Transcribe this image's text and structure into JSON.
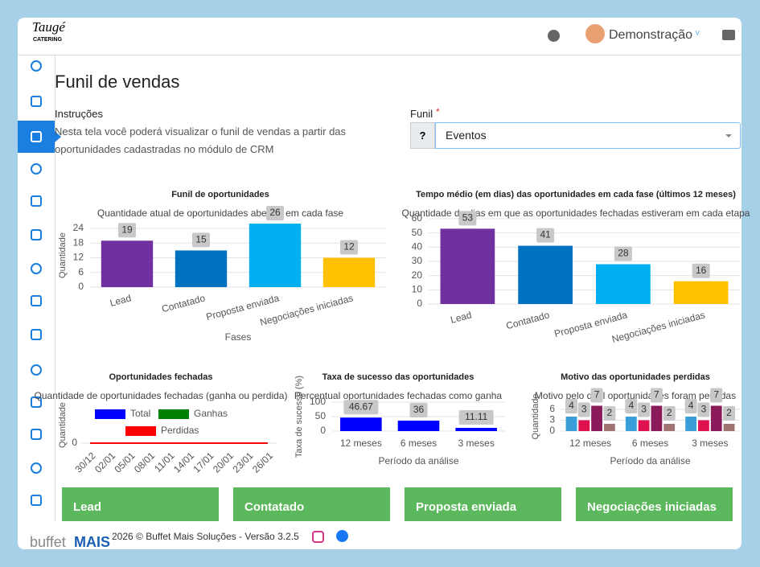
{
  "header": {
    "logo": "Taugé",
    "logo_sub": "CATERING",
    "user": "Demonstração"
  },
  "page": {
    "title": "Funil de vendas",
    "instructions_title": "Instruções",
    "instructions": "Nesta tela você poderá visualizar o funil de vendas a partir das oportunidades cadastradas no módulo de CRM",
    "funnel_label": "Funil",
    "required": "*",
    "help": "?",
    "funnel_value": "Eventos"
  },
  "chart_data": [
    {
      "type": "bar",
      "title": "Funil de oportunidades",
      "subtitle": "Quantidade atual de oportunidades abertas em cada fase",
      "x_label": "Fases",
      "y_label": "Quantidade",
      "categories": [
        "Lead",
        "Contatado",
        "Proposta enviada",
        "Negociações iniciadas"
      ],
      "values": [
        19,
        15,
        26,
        12
      ],
      "colors": [
        "#7030a0",
        "#0070c0",
        "#00b0f0",
        "#ffc000"
      ],
      "ylim": [
        0,
        26
      ],
      "yticks": [
        0,
        6,
        12,
        18,
        24
      ],
      "grid": true
    },
    {
      "type": "bar",
      "title": "Tempo médio (em dias) das oportunidades em cada fase (últimos 12 meses)",
      "subtitle": "Quantidade de dias em que as oportunidades fechadas estiveram em cada etapa",
      "categories": [
        "Lead",
        "Contatado",
        "Proposta enviada",
        "Negociações iniciadas"
      ],
      "values": [
        53,
        41,
        28,
        16
      ],
      "colors": [
        "#7030a0",
        "#0070c0",
        "#00b0f0",
        "#ffc000"
      ],
      "ylim": [
        0,
        60
      ],
      "yticks": [
        0,
        10,
        20,
        30,
        40,
        50,
        60
      ],
      "grid": true
    },
    {
      "type": "line",
      "title": "Oportunidades fechadas",
      "subtitle": "Quantidade de oportunidades fechadas (ganha ou perdida)",
      "y_label": "Quantidade",
      "categories": [
        "30/12",
        "02/01",
        "05/01",
        "08/01",
        "11/01",
        "14/01",
        "17/01",
        "20/01",
        "23/01",
        "26/01"
      ],
      "series": [
        {
          "name": "Total",
          "color": "#0000ff",
          "values": [
            0,
            0,
            0,
            0,
            0,
            0,
            0,
            0,
            0,
            0
          ]
        },
        {
          "name": "Ganhas",
          "color": "#008000",
          "values": [
            0,
            0,
            0,
            0,
            0,
            0,
            0,
            0,
            0,
            0
          ]
        },
        {
          "name": "Perdidas",
          "color": "#ff0000",
          "values": [
            0,
            0,
            0,
            0,
            0,
            0,
            0,
            0,
            0,
            0
          ]
        }
      ],
      "ylim": [
        0,
        1
      ],
      "yticks": [
        0
      ],
      "grid": true
    },
    {
      "type": "bar",
      "title": "Taxa de sucesso das oportunidades",
      "subtitle": "Percentual oportunidades fechadas como ganha",
      "x_label": "Período da análise",
      "y_label": "Taxa de sucesso (%)",
      "categories": [
        "12 meses",
        "6 meses",
        "3 meses"
      ],
      "values": [
        46.67,
        36,
        11.11
      ],
      "color": "#0000ff",
      "ylim": [
        0,
        100
      ],
      "yticks": [
        0,
        50,
        100
      ],
      "grid": true
    },
    {
      "type": "bar",
      "title": "Motivo das oportunidades perdidas",
      "subtitle": "Motivo pelo qual oportunidades foram perdidas",
      "x_label": "Período da análise",
      "y_label": "Quantidade",
      "categories": [
        "12 meses",
        "6 meses",
        "3 meses"
      ],
      "series": [
        {
          "color": "#3a9fd8",
          "values": [
            4,
            4,
            4
          ]
        },
        {
          "color": "#e0114f",
          "values": [
            3,
            3,
            3
          ]
        },
        {
          "color": "#8b1a5a",
          "values": [
            7,
            7,
            7
          ]
        },
        {
          "color": "#a07272",
          "values": [
            2,
            2,
            2
          ]
        }
      ],
      "ylim": [
        0,
        8
      ],
      "yticks": [
        0,
        3,
        6
      ],
      "grid": true
    }
  ],
  "cards": [
    "Lead",
    "Contatado",
    "Proposta enviada",
    "Negociações iniciadas"
  ],
  "footer": {
    "brand": "buffet",
    "brand_bold": "MAIS",
    "text": "2026 © Buffet Mais Soluções - Versão 3.2.5"
  }
}
